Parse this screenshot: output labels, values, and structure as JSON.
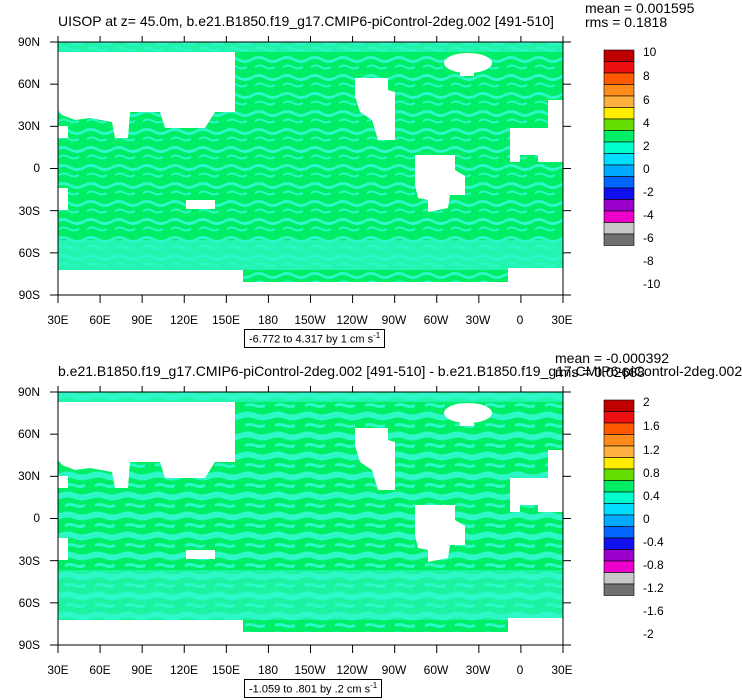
{
  "panels": [
    {
      "title": "UISOP at z=  45.0m, b.e21.B1850.f19_g17.CMIP6-piControl-2deg.002 [491-510]",
      "mean": "mean = 0.001595",
      "rms": "rms = 0.1818",
      "caption": "-6.772 to 4.317 by 1 cm s",
      "caption_sup": "-1",
      "colorbar_labels": [
        "10",
        "8",
        "6",
        "4",
        "2",
        "0",
        "-2",
        "-4",
        "-6",
        "-8",
        "-10"
      ]
    },
    {
      "title": "b.e21.B1850.f19_g17.CMIP6-piControl-2deg.002 [491-510] - b.e21.B1850.f19_g17.CMIP6-piControl-2deg.002",
      "mean": "mean = -0.000392",
      "rms": "rms = 0.02688",
      "caption": "-1.059 to .801 by .2 cm s",
      "caption_sup": "-1",
      "colorbar_labels": [
        "2",
        "1.6",
        "1.2",
        "0.8",
        "0.4",
        "0",
        "-0.4",
        "-0.8",
        "-1.2",
        "-1.6",
        "-2"
      ]
    }
  ],
  "lat_labels": [
    "90N",
    "60N",
    "30N",
    "0",
    "30S",
    "60S",
    "90S"
  ],
  "lon_labels": [
    "30E",
    "60E",
    "90E",
    "120E",
    "150E",
    "180",
    "150W",
    "120W",
    "90W",
    "60W",
    "30W",
    "0",
    "30E"
  ],
  "colorbar_colors": [
    "#c00000",
    "#ee1010",
    "#ff5a00",
    "#ff8c1a",
    "#ffb040",
    "#ffee00",
    "#66dd00",
    "#00ee66",
    "#00ffcc",
    "#00ddff",
    "#00aaff",
    "#0066ff",
    "#1010ee",
    "#9900cc",
    "#ee00cc",
    "#c8c8c8",
    "#707070"
  ],
  "colors": {
    "ocean_main": "#00ee66",
    "ocean_alt": "#2ef7c8",
    "land": "#ffffff"
  }
}
